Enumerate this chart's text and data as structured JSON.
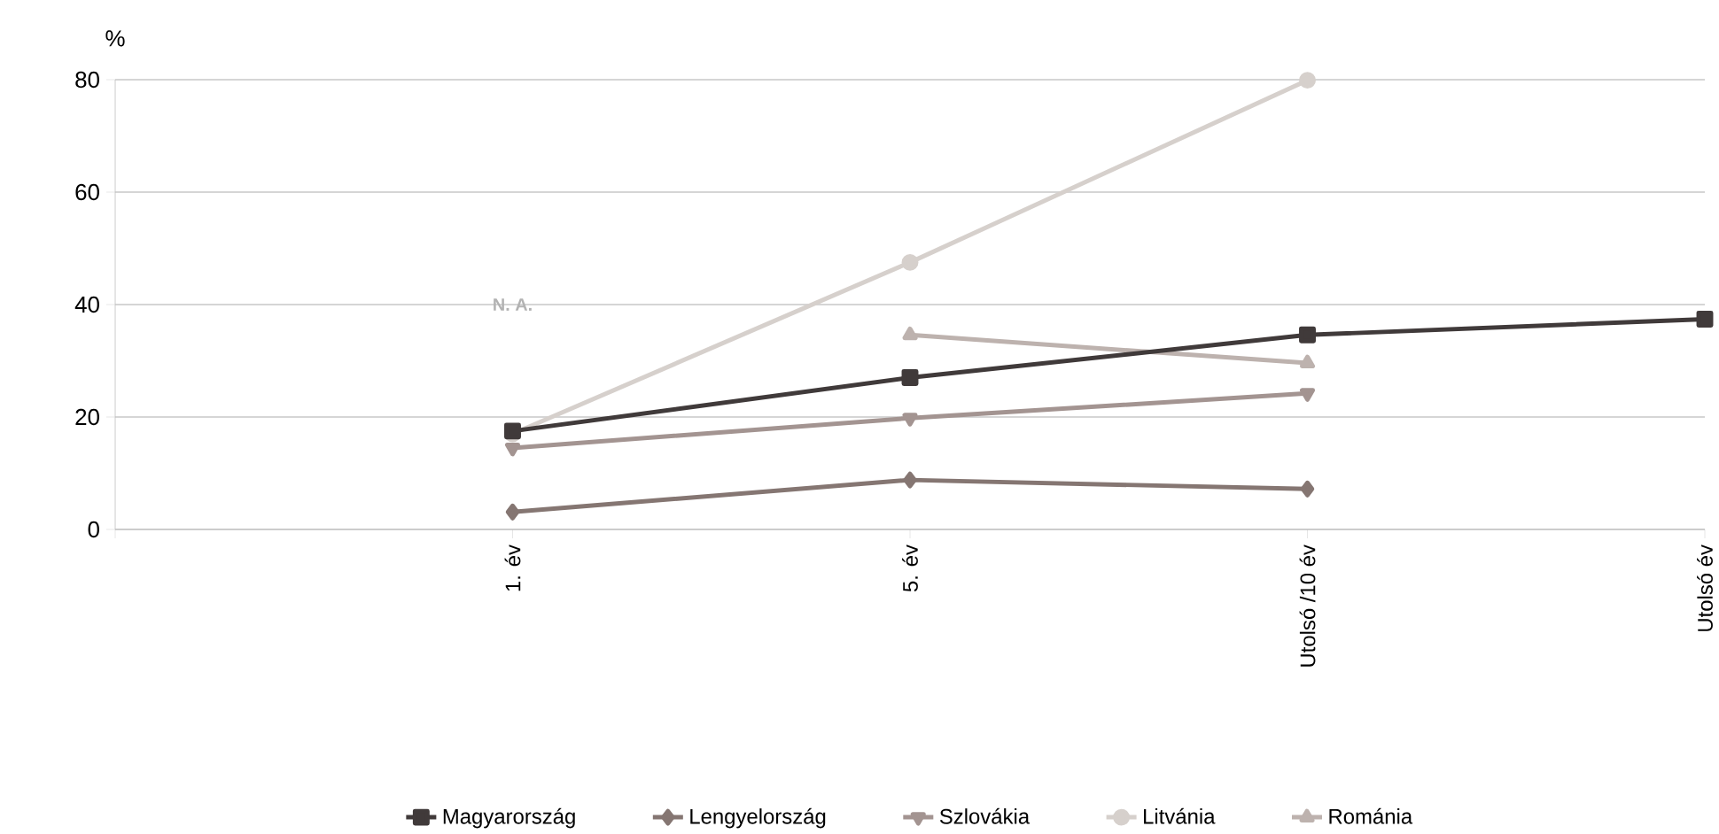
{
  "chart_data": {
    "type": "line",
    "ylabel": "%",
    "categories": [
      null,
      "1. év",
      "5. év",
      "Utolsó /10 év",
      "Utolsó év"
    ],
    "series": [
      {
        "name": "Magyarország",
        "color": "#403a3a",
        "marker": "square",
        "values": [
          null,
          17.5,
          27,
          34.6,
          37.4
        ]
      },
      {
        "name": "Lengyelország",
        "color": "#857672",
        "marker": "diamond",
        "values": [
          null,
          3.1,
          8.8,
          7.2,
          null
        ]
      },
      {
        "name": "Szlovákia",
        "color": "#a39491",
        "marker": "triangle-down",
        "values": [
          null,
          14.5,
          19.8,
          24.2,
          null
        ]
      },
      {
        "name": "Litvánia",
        "color": "#d6d0cc",
        "marker": "circle",
        "values": [
          null,
          17,
          47.5,
          79.9,
          null
        ]
      },
      {
        "name": "Románia",
        "color": "#bdb2ae",
        "marker": "triangle",
        "values": [
          null,
          null,
          34.6,
          29.6,
          null
        ]
      }
    ],
    "annotations": [
      "N. A."
    ],
    "ylim": [
      0,
      80
    ],
    "yticks": [
      0,
      20,
      40,
      60,
      80
    ],
    "grid": "y",
    "legend": "bottom"
  }
}
